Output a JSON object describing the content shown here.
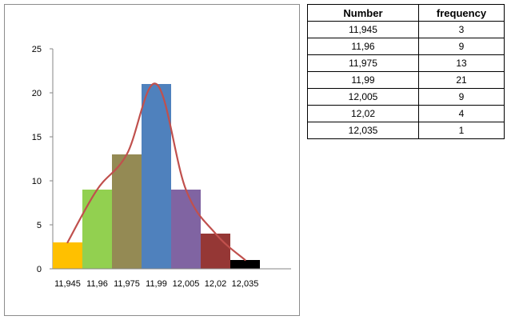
{
  "chart_data": {
    "type": "bar",
    "categories": [
      "11,945",
      "11,96",
      "11,975",
      "11,99",
      "12,005",
      "12,02",
      "12,035"
    ],
    "values": [
      3,
      9,
      13,
      21,
      9,
      4,
      1
    ],
    "bar_colors": [
      "#FFC000",
      "#92D050",
      "#948A54",
      "#4F81BD",
      "#8064A2",
      "#953735",
      "#000000"
    ],
    "curve_color": "#C0504D",
    "curve_overlay": true,
    "ylim": [
      0,
      25
    ],
    "yticks": [
      "0",
      "5",
      "10",
      "15",
      "20",
      "25"
    ],
    "title": "",
    "xlabel": "",
    "ylabel": "",
    "grid": false,
    "legend": "none"
  },
  "table": {
    "headers": [
      "Number",
      "frequency"
    ],
    "rows": [
      [
        "11,945",
        "3"
      ],
      [
        "11,96",
        "9"
      ],
      [
        "11,975",
        "13"
      ],
      [
        "11,99",
        "21"
      ],
      [
        "12,005",
        "9"
      ],
      [
        "12,02",
        "4"
      ],
      [
        "12,035",
        "1"
      ]
    ]
  }
}
